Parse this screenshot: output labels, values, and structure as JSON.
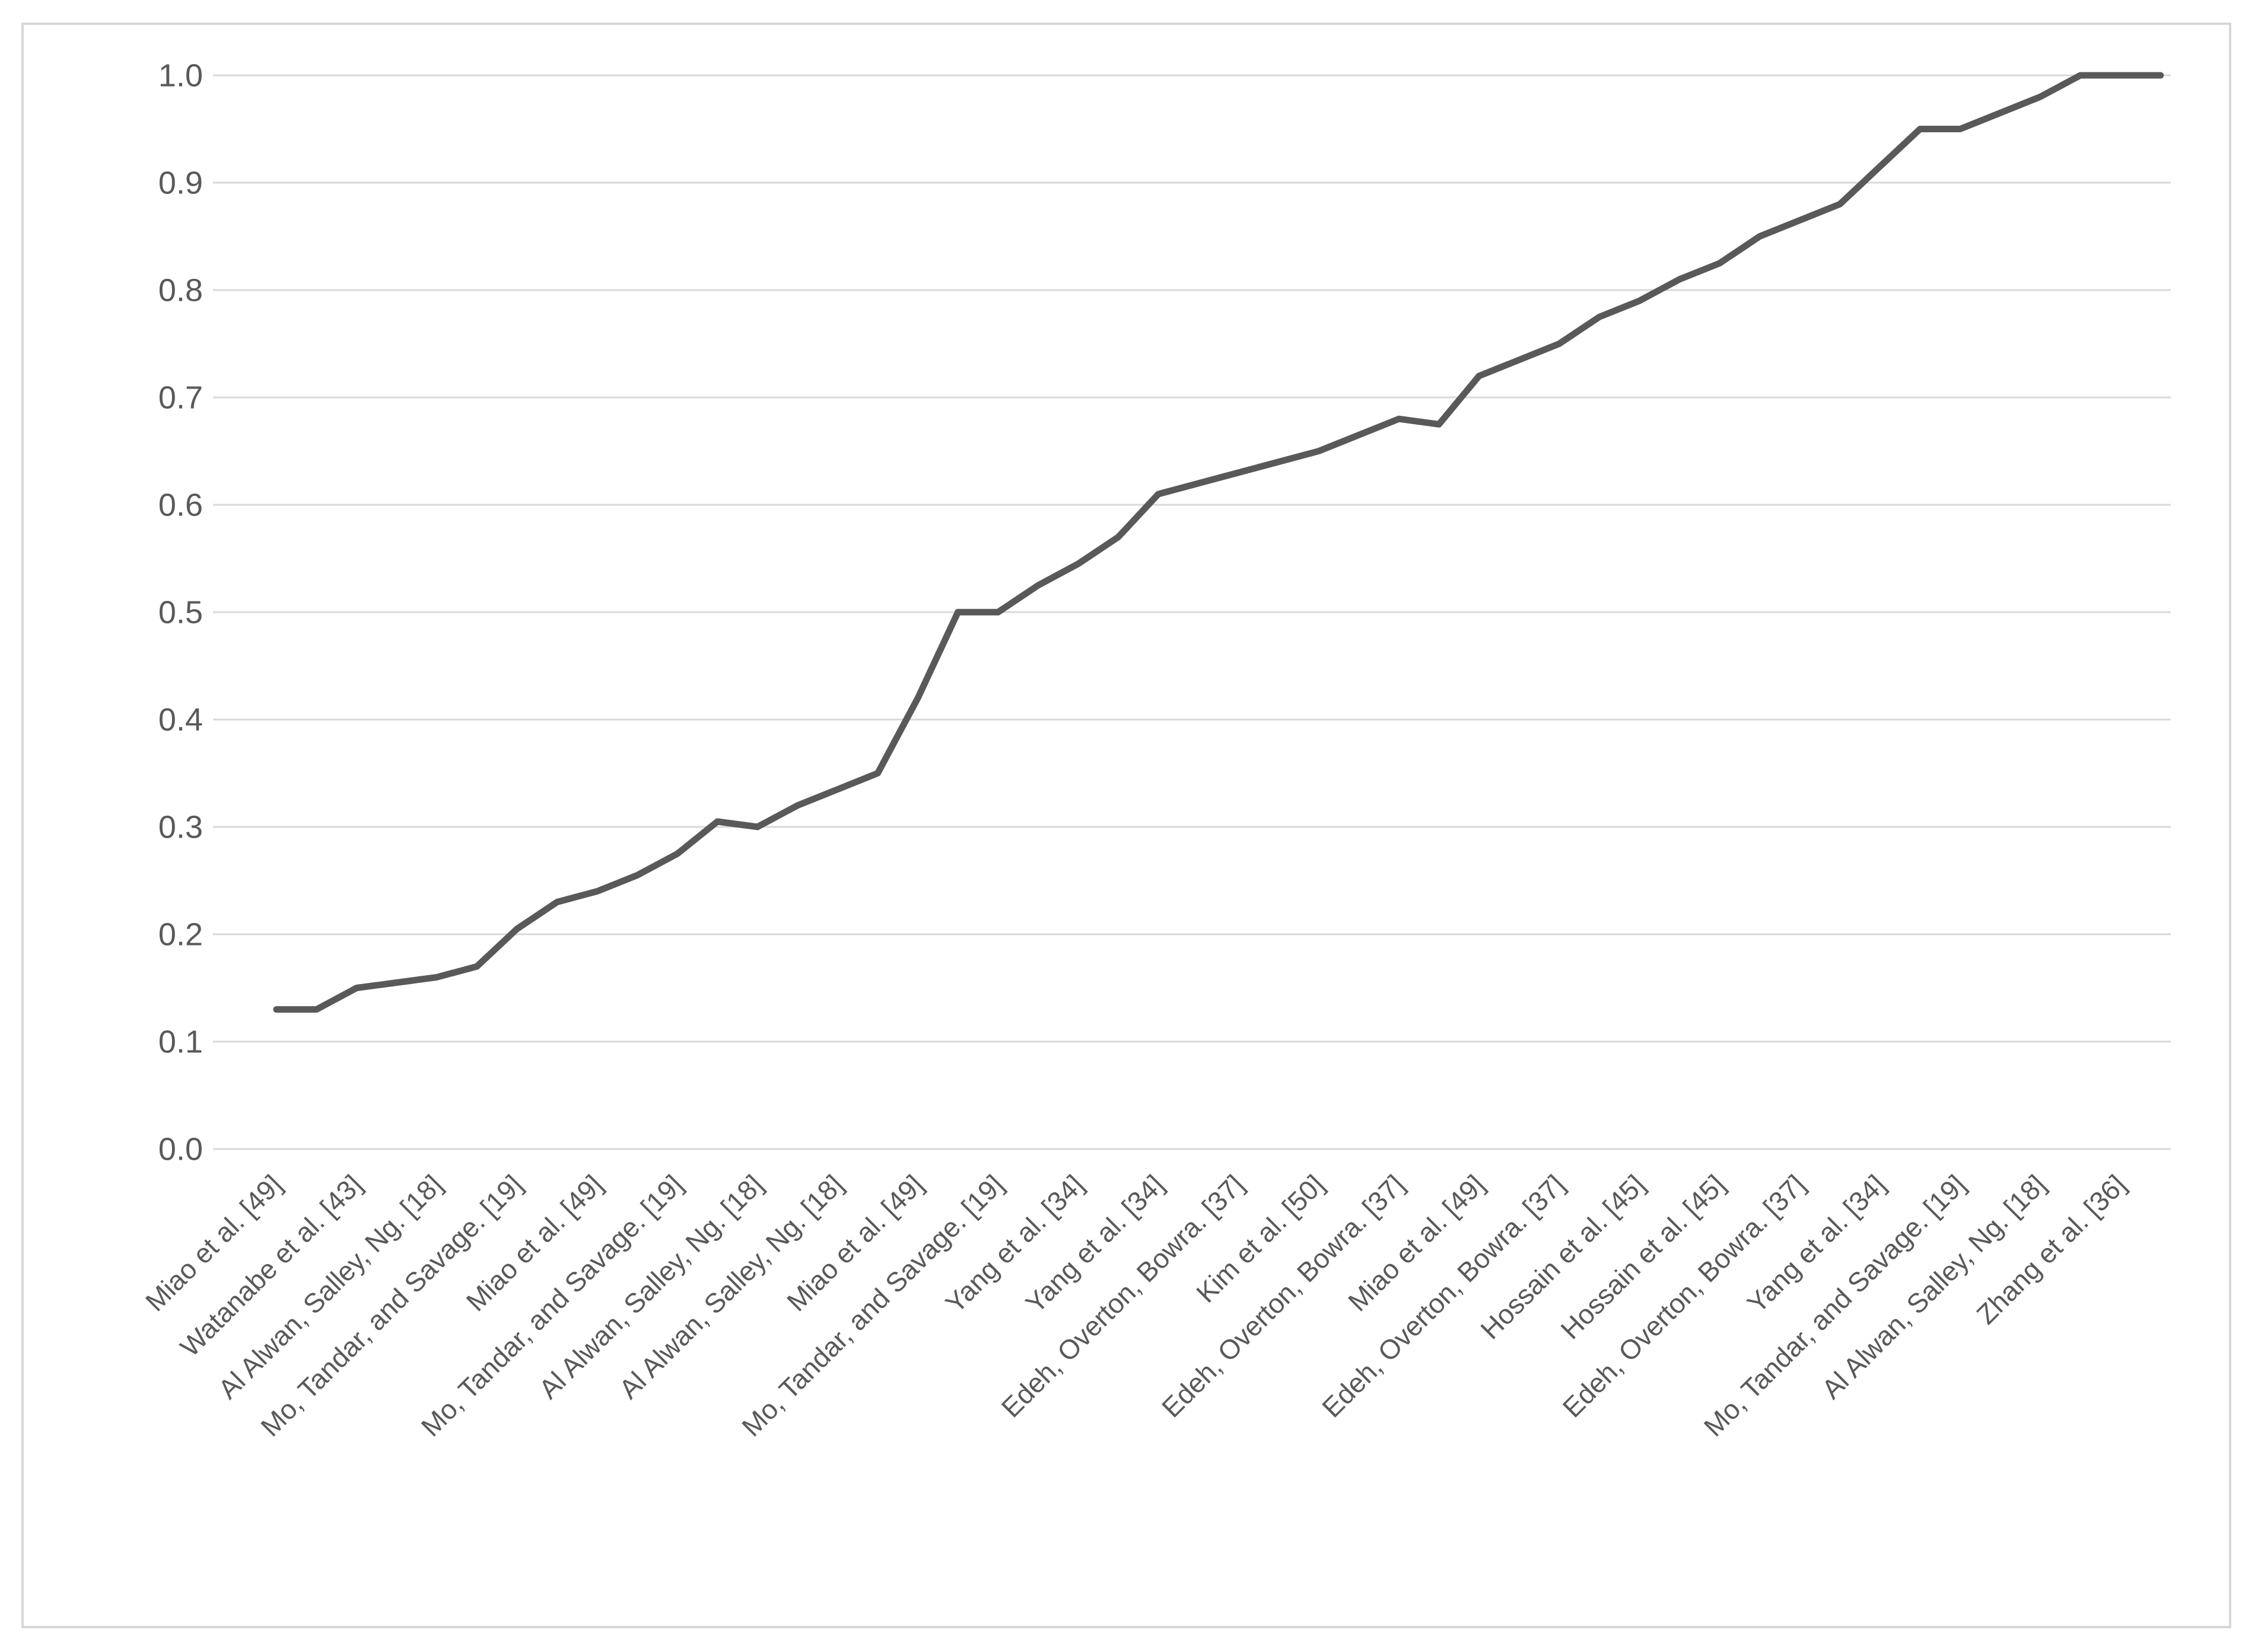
{
  "chart_data": {
    "type": "line",
    "title": "",
    "xlabel": "",
    "ylabel": "",
    "legend": "none",
    "grid": true,
    "ylim": [
      0.0,
      1.0
    ],
    "y_tick_step": 0.1,
    "y_ticks": [
      "0.0",
      "0.1",
      "0.2",
      "0.3",
      "0.4",
      "0.5",
      "0.6",
      "0.7",
      "0.8",
      "0.9",
      "1.0"
    ],
    "x_label_interval": 2,
    "categories": [
      "Miao et al. [49]",
      "Watanabe et al. [43]",
      "Al Alwan, Salley, Ng. [18]",
      "Mo, Tandar, and Savage. [19]",
      "Miao et al. [49]",
      "Mo, Tandar, and Savage. [19]",
      "Al Alwan, Salley, Ng. [18]",
      "Al Alwan, Salley, Ng. [18]",
      "Miao et al. [49]",
      "Mo, Tandar, and Savage. [19]",
      "Yang et al. [34]",
      "Yang et al. [34]",
      "Edeh, Overton, Bowra. [37]",
      "Kim et al. [50]",
      "Edeh, Overton, Bowra. [37]",
      "Miao et al. [49]",
      "Edeh, Overton, Bowra. [37]",
      "Hossain et al. [45]",
      "Hossain et al. [45]",
      "Edeh, Overton, Bowra. [37]",
      "Yang et al. [34]",
      "Mo, Tandar, and Savage. [19]",
      "Al Alwan, Salley, Ng. [18]",
      "Zhang et al. [36]"
    ],
    "values": [
      0.13,
      0.13,
      0.15,
      0.155,
      0.16,
      0.17,
      0.205,
      0.23,
      0.24,
      0.255,
      0.275,
      0.305,
      0.3,
      0.32,
      0.335,
      0.35,
      0.42,
      0.5,
      0.5,
      0.525,
      0.545,
      0.57,
      0.61,
      0.62,
      0.63,
      0.64,
      0.65,
      0.665,
      0.68,
      0.675,
      0.72,
      0.735,
      0.75,
      0.775,
      0.79,
      0.81,
      0.825,
      0.85,
      0.865,
      0.88,
      0.915,
      0.95,
      0.95,
      0.965,
      0.98,
      1.0,
      1.0,
      1.0
    ],
    "line_color": "#595959",
    "line_width": 11,
    "gridline_color": "#d9d9d9",
    "axis_label_color": "#595959",
    "border_color": "#d7d7d7",
    "background_color": "#ffffff"
  }
}
